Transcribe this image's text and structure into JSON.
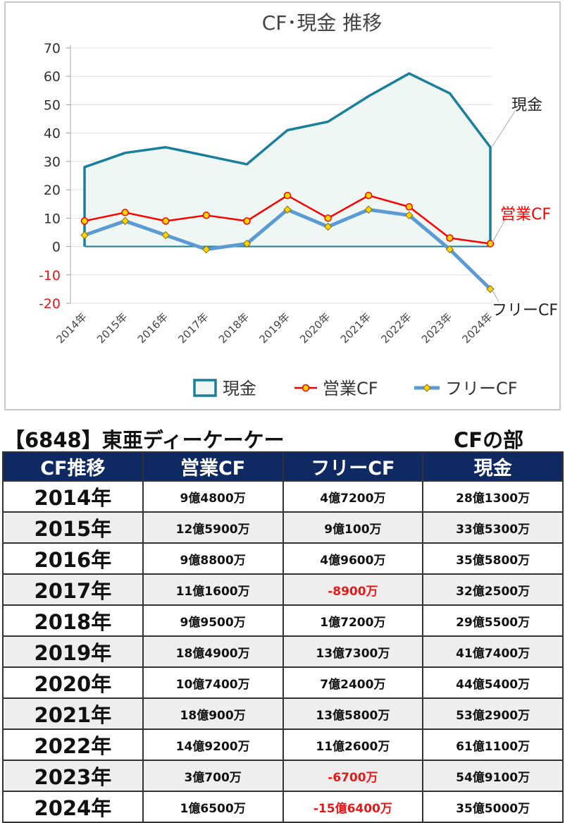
{
  "chart_data": {
    "type": "line",
    "title": "CF･現金 推移",
    "categories": [
      "2014年",
      "2015年",
      "2016年",
      "2017年",
      "2018年",
      "2019年",
      "2020年",
      "2021年",
      "2022年",
      "2023年",
      "2024年"
    ],
    "ylim": [
      -20,
      70
    ],
    "yticks": [
      70,
      60,
      50,
      40,
      30,
      20,
      10,
      0,
      -10,
      -20
    ],
    "grid": true,
    "legend_position": "bottom",
    "series": [
      {
        "name": "現金",
        "style": "area",
        "color": "#1a7f9c",
        "values": [
          28,
          33,
          35,
          32,
          29,
          41,
          44,
          53,
          61,
          54,
          35
        ]
      },
      {
        "name": "営業CF",
        "style": "line",
        "color": "#ff0000",
        "values": [
          9,
          12,
          9,
          11,
          9,
          18,
          10,
          18,
          14,
          3,
          1
        ]
      },
      {
        "name": "フリーCF",
        "style": "line",
        "color": "#5b9bd5",
        "values": [
          4,
          9,
          4,
          -1,
          1,
          13,
          7,
          13,
          11,
          -1,
          -15
        ]
      }
    ],
    "end_labels": [
      {
        "series": "現金",
        "text": "現金",
        "color": "#222222"
      },
      {
        "series": "営業CF",
        "text": "営業CF",
        "color": "#ff0000"
      },
      {
        "series": "フリーCF",
        "text": "フリーCF",
        "color": "#222222"
      }
    ]
  },
  "caption": {
    "company": "【6848】東亜ディーケーケー",
    "section": "CFの部"
  },
  "table": {
    "headers": [
      "CF推移",
      "営業CF",
      "フリーCF",
      "現金"
    ],
    "rows": [
      {
        "year": "2014年",
        "op": "9億4800万",
        "free": "4億7200万",
        "cash": "28億1300万",
        "free_negative": false
      },
      {
        "year": "2015年",
        "op": "12億5900万",
        "free": "9億100万",
        "cash": "33億5300万",
        "free_negative": false
      },
      {
        "year": "2016年",
        "op": "9億8800万",
        "free": "4億9600万",
        "cash": "35億5800万",
        "free_negative": false
      },
      {
        "year": "2017年",
        "op": "11億1600万",
        "free": "-8900万",
        "cash": "32億2500万",
        "free_negative": true
      },
      {
        "year": "2018年",
        "op": "9億9500万",
        "free": "1億7200万",
        "cash": "29億5500万",
        "free_negative": false
      },
      {
        "year": "2019年",
        "op": "18億4900万",
        "free": "13億7300万",
        "cash": "41億7400万",
        "free_negative": false
      },
      {
        "year": "2020年",
        "op": "10億7400万",
        "free": "7億2400万",
        "cash": "44億5400万",
        "free_negative": false
      },
      {
        "year": "2021年",
        "op": "18億900万",
        "free": "13億5800万",
        "cash": "53億2900万",
        "free_negative": false
      },
      {
        "year": "2022年",
        "op": "14億9200万",
        "free": "11億2600万",
        "cash": "61億1100万",
        "free_negative": false
      },
      {
        "year": "2023年",
        "op": "3億700万",
        "free": "-6700万",
        "cash": "54億9100万",
        "free_negative": true
      },
      {
        "year": "2024年",
        "op": "1億6500万",
        "free": "-15億6400万",
        "cash": "35億5000万",
        "free_negative": true
      }
    ]
  }
}
